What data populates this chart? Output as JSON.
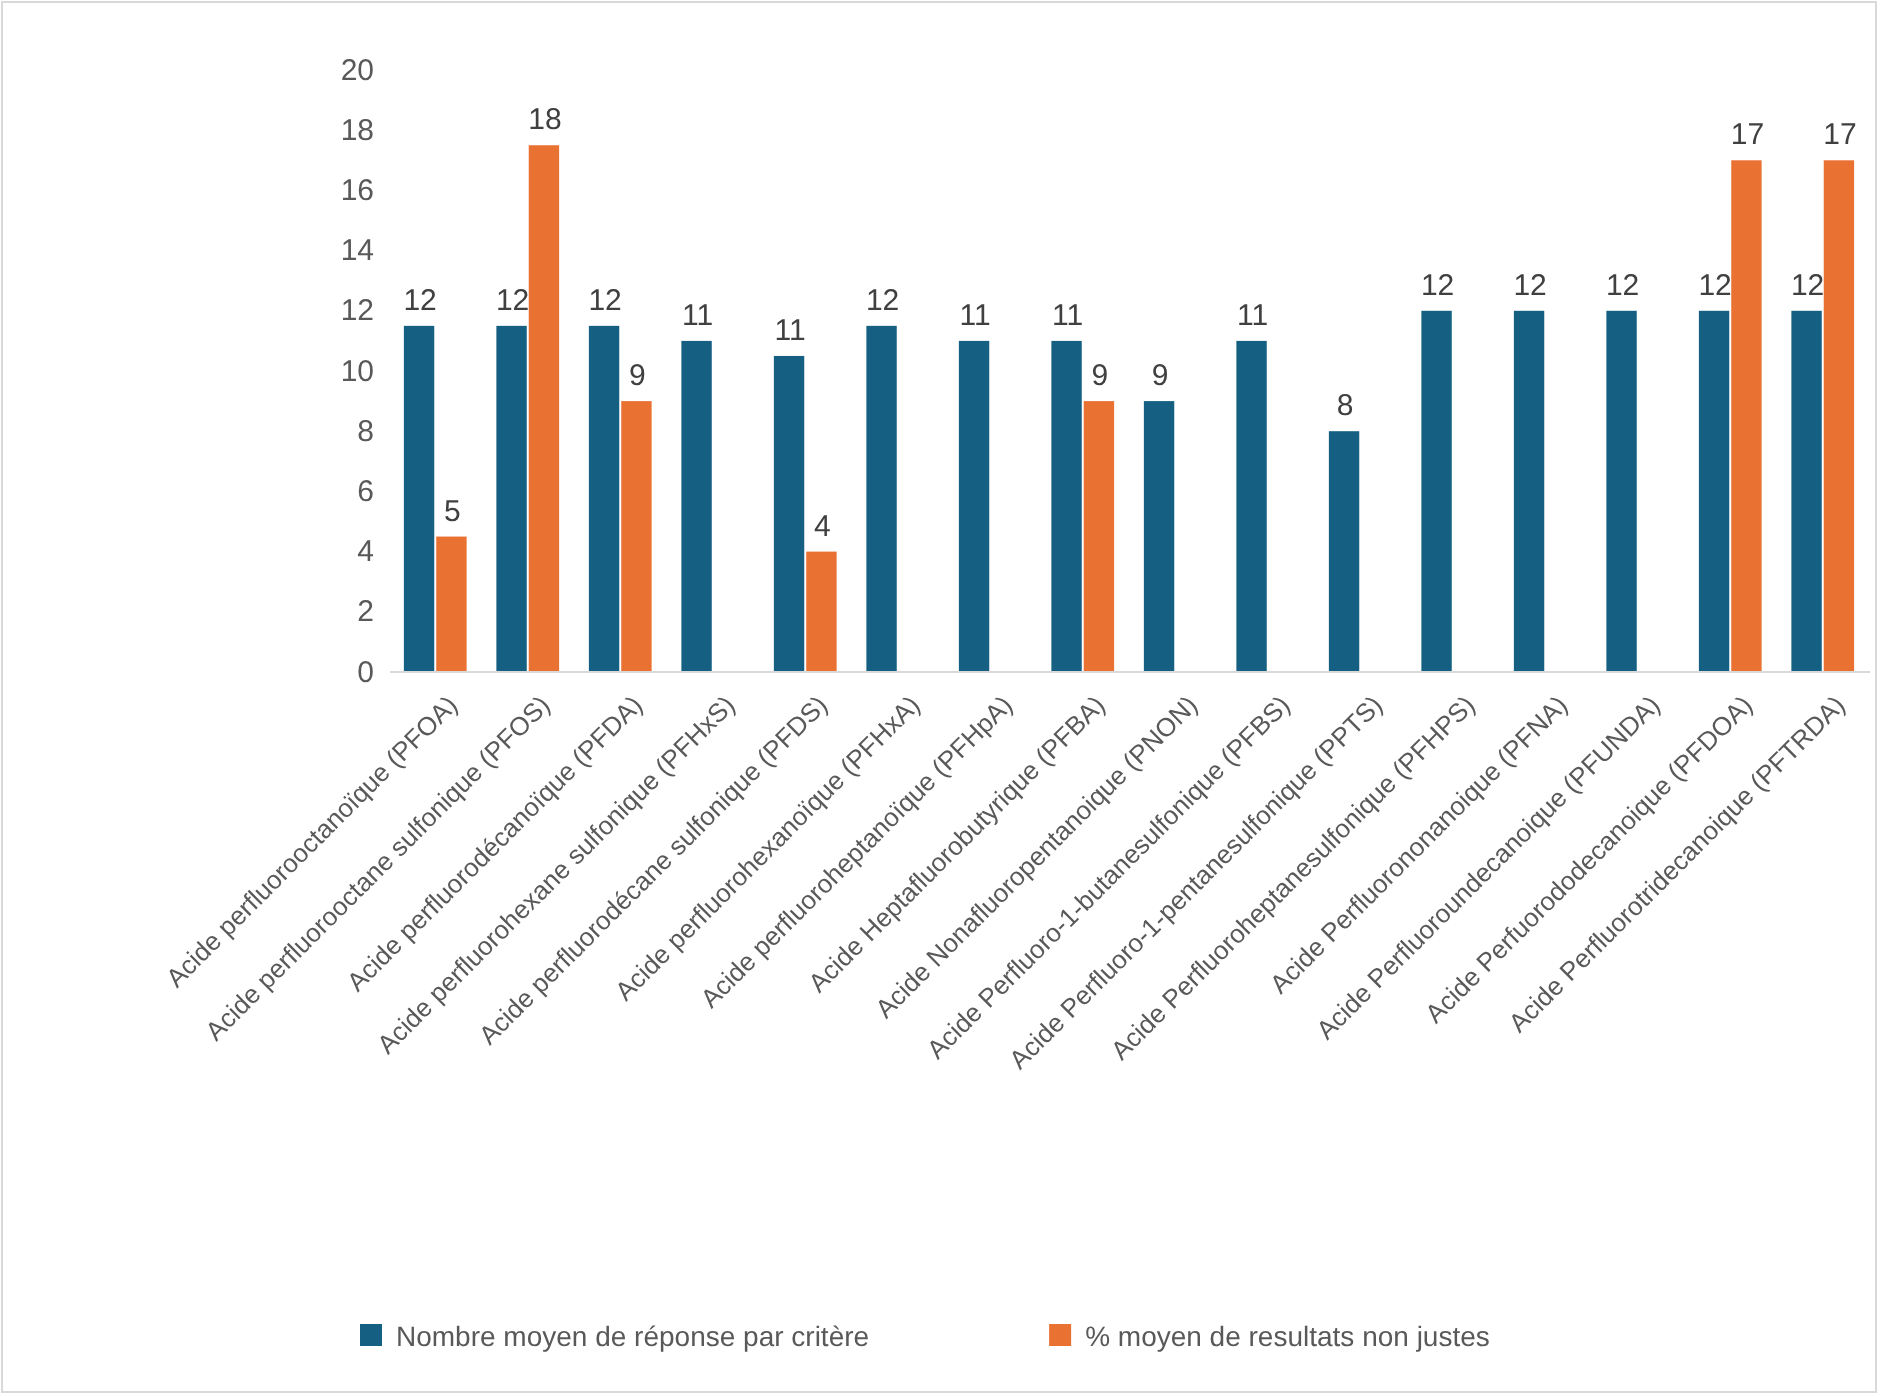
{
  "chart_data": {
    "type": "bar",
    "categories": [
      "Acide perfluorooctanoïque (PFOA)",
      "Acide perfluorooctane sulfonique (PFOS)",
      "Acide perfluorodécanoïque (PFDA)",
      "Acide perfluorohexane sulfonique (PFHxS)",
      "Acide perfluorodécane sulfonique (PFDS)",
      "Acide perfluorohexanoïque (PFHxA)",
      "Acide perfluoroheptanoïque (PFHpA)",
      "Acide Heptafluorobutyrique (PFBA)",
      "Acide Nonafluoropentanoique (PNON)",
      "Acide Perfluoro-1-butanesulfonique (PFBS)",
      "Acide Perfluoro-1-pentanesulfonique (PPTS)",
      "Acide Perfluoroheptanesulfonique (PFHPS)",
      "Acide Perfluorononanoique (PFNA)",
      "Acide Perfluoroundecanoique (PFUNDA)",
      "Acide Perfuorododecanoique (PFDOA)",
      "Acide Perfluorotridecanoique (PFTRDA)"
    ],
    "series": [
      {
        "name": "Nombre moyen de réponse par critère",
        "color": "#156082",
        "values": [
          11.5,
          11.5,
          11.5,
          11,
          10.5,
          11.5,
          11,
          11,
          9,
          11,
          8,
          12,
          12,
          12,
          12,
          12
        ],
        "value_labels": [
          "12",
          "12",
          "12",
          "11",
          "11",
          "12",
          "11",
          "11",
          "9",
          "11",
          "8",
          "12",
          "12",
          "12",
          "12",
          "12"
        ]
      },
      {
        "name": "% moyen de resultats non justes",
        "color": "#e97132",
        "values": [
          4.5,
          17.5,
          9,
          null,
          4,
          null,
          null,
          9,
          null,
          null,
          null,
          null,
          null,
          null,
          17,
          17
        ],
        "value_labels": [
          "5",
          "18",
          "9",
          null,
          "4",
          null,
          null,
          "9",
          null,
          null,
          null,
          null,
          null,
          null,
          "17",
          "17"
        ]
      }
    ],
    "ylim": [
      0,
      20
    ],
    "yticks": [
      0,
      2,
      4,
      6,
      8,
      10,
      12,
      14,
      16,
      18,
      20
    ],
    "grid": false,
    "legend": "bottom"
  }
}
